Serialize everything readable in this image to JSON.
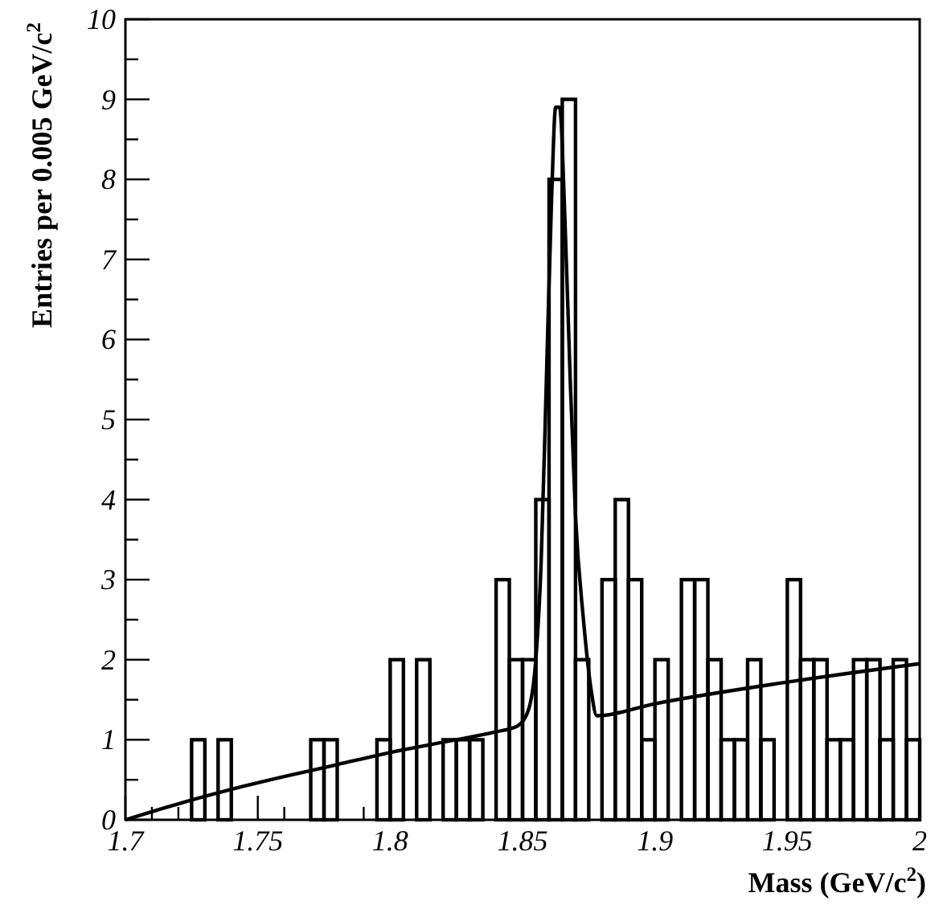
{
  "chart_data": {
    "type": "histogram",
    "xlabel": "Mass (GeV/c$^{2}$)",
    "ylabel": "Entries per 0.005 GeV/c$^{2}$",
    "bins": [
      1.7,
      1.705,
      1.71,
      1.715,
      1.72,
      1.725,
      1.73,
      1.735,
      1.74,
      1.745,
      1.75,
      1.755,
      1.76,
      1.765,
      1.77,
      1.775,
      1.78,
      1.785,
      1.79,
      1.795,
      1.8,
      1.805,
      1.81,
      1.815,
      1.82,
      1.825,
      1.83,
      1.835,
      1.84,
      1.845,
      1.85,
      1.855,
      1.86,
      1.865,
      1.87,
      1.875,
      1.88,
      1.885,
      1.89,
      1.895,
      1.9,
      1.905,
      1.91,
      1.915,
      1.92,
      1.925,
      1.93,
      1.935,
      1.94,
      1.945,
      1.95,
      1.955,
      1.96,
      1.965,
      1.97,
      1.975,
      1.98,
      1.985,
      1.99,
      1.995,
      2.0
    ],
    "series": [
      {
        "type": "histogram",
        "color": "#000000",
        "values": [
          0,
          0,
          0,
          0,
          0,
          1,
          0,
          1,
          0,
          0,
          0,
          0,
          0,
          0,
          1,
          1,
          0,
          0,
          0,
          1,
          2,
          0,
          2,
          0,
          1,
          1,
          1,
          0,
          3,
          2,
          2,
          4,
          8,
          9,
          2,
          0,
          3,
          4,
          3,
          1,
          2,
          0,
          3,
          3,
          2,
          1,
          1,
          2,
          1,
          0,
          3,
          2,
          2,
          1,
          1,
          2,
          2,
          1,
          2,
          1
        ]
      },
      {
        "type": "line",
        "color": "#000000",
        "x": [
          1.7,
          1.72,
          1.74,
          1.76,
          1.78,
          1.8,
          1.82,
          1.84,
          1.848,
          1.852,
          1.855,
          1.857,
          1.859,
          1.861,
          1.8625,
          1.864,
          1.866,
          1.868,
          1.87,
          1.873,
          1.876,
          1.878,
          1.9,
          1.95,
          2.0
        ],
        "values": [
          0,
          0.2,
          0.38,
          0.54,
          0.69,
          0.84,
          0.97,
          1.1,
          1.17,
          1.35,
          2.0,
          3.2,
          5.5,
          7.8,
          8.9,
          8.9,
          7.5,
          5.5,
          3.8,
          2.5,
          1.6,
          1.3,
          1.45,
          1.72,
          1.95
        ]
      }
    ],
    "xlim": [
      1.7,
      2.0
    ],
    "ylim": [
      0,
      10
    ],
    "xticks": [
      1.7,
      {
        "value": 1.71,
        "label": null
      },
      {
        "value": 1.72,
        "label": null
      },
      {
        "value": 1.73,
        "label": null
      },
      {
        "value": 1.74,
        "label": null
      },
      1.75,
      {
        "value": 1.76,
        "label": null
      },
      {
        "value": 1.77,
        "label": null
      },
      {
        "value": 1.78,
        "label": null
      },
      {
        "value": 1.79,
        "label": null
      },
      1.8,
      {
        "value": 1.81,
        "label": null
      },
      {
        "value": 1.82,
        "label": null
      },
      {
        "value": 1.83,
        "label": null
      },
      {
        "value": 1.84,
        "label": null
      },
      1.85,
      {
        "value": 1.86,
        "label": null
      },
      {
        "value": 1.87,
        "label": null
      },
      {
        "value": 1.88,
        "label": null
      },
      {
        "value": 1.89,
        "label": null
      },
      1.9,
      {
        "value": 1.91,
        "label": null
      },
      {
        "value": 1.92,
        "label": null
      },
      {
        "value": 1.93,
        "label": null
      },
      {
        "value": 1.94,
        "label": null
      },
      1.95,
      {
        "value": 1.96,
        "label": null
      },
      {
        "value": 1.97,
        "label": null
      },
      {
        "value": 1.98,
        "label": null
      },
      {
        "value": 1.99,
        "label": null
      },
      2
    ],
    "yticks": [
      0,
      {
        "value": 0.5,
        "label": null
      },
      1,
      {
        "value": 1.5,
        "label": null
      },
      2,
      {
        "value": 2.5,
        "label": null
      },
      3,
      {
        "value": 3.5,
        "label": null
      },
      4,
      {
        "value": 4.5,
        "label": null
      },
      5,
      {
        "value": 5.5,
        "label": null
      },
      6,
      {
        "value": 6.5,
        "label": null
      },
      7,
      {
        "value": 7.5,
        "label": null
      },
      8,
      {
        "value": 8.5,
        "label": null
      },
      9,
      {
        "value": 9.5,
        "label": null
      },
      10
    ],
    "grid": false,
    "legend": false
  }
}
